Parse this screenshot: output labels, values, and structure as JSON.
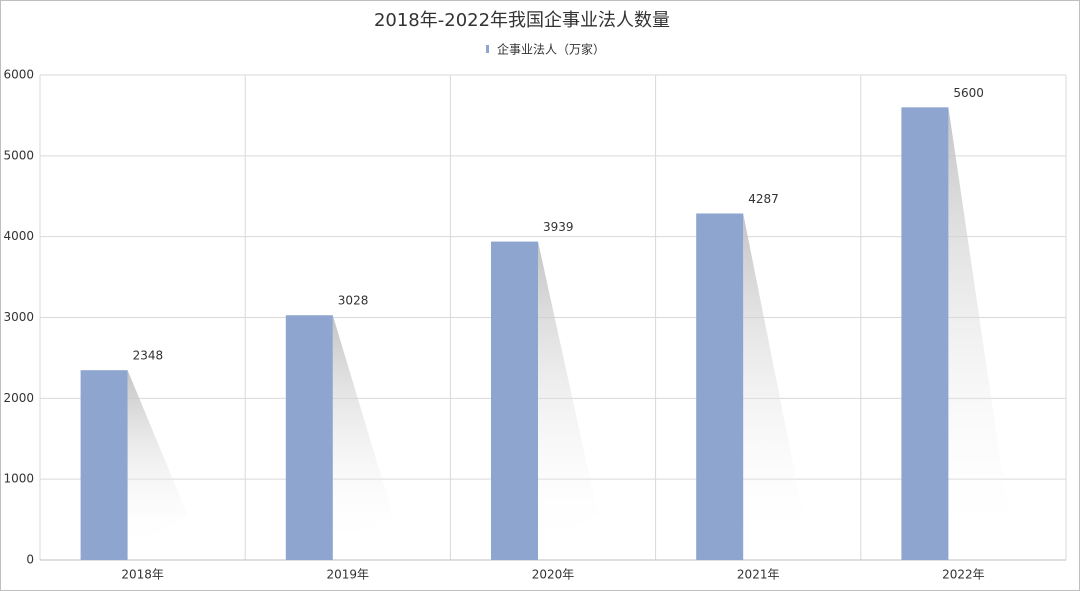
{
  "chart_data": {
    "type": "bar",
    "title": "2018年-2022年我国企事业法人数量",
    "categories": [
      "2018年",
      "2019年",
      "2020年",
      "2021年",
      "2022年"
    ],
    "series": [
      {
        "name": "企事业法人（万家）",
        "color": "#8ea5cf",
        "values": [
          2348,
          3028,
          3939,
          4287,
          5600
        ]
      }
    ],
    "ylim": [
      0,
      6000
    ],
    "yticks": [
      0,
      1000,
      2000,
      3000,
      4000,
      5000,
      6000
    ],
    "grid": true,
    "data_labels": true,
    "legend": "top"
  }
}
